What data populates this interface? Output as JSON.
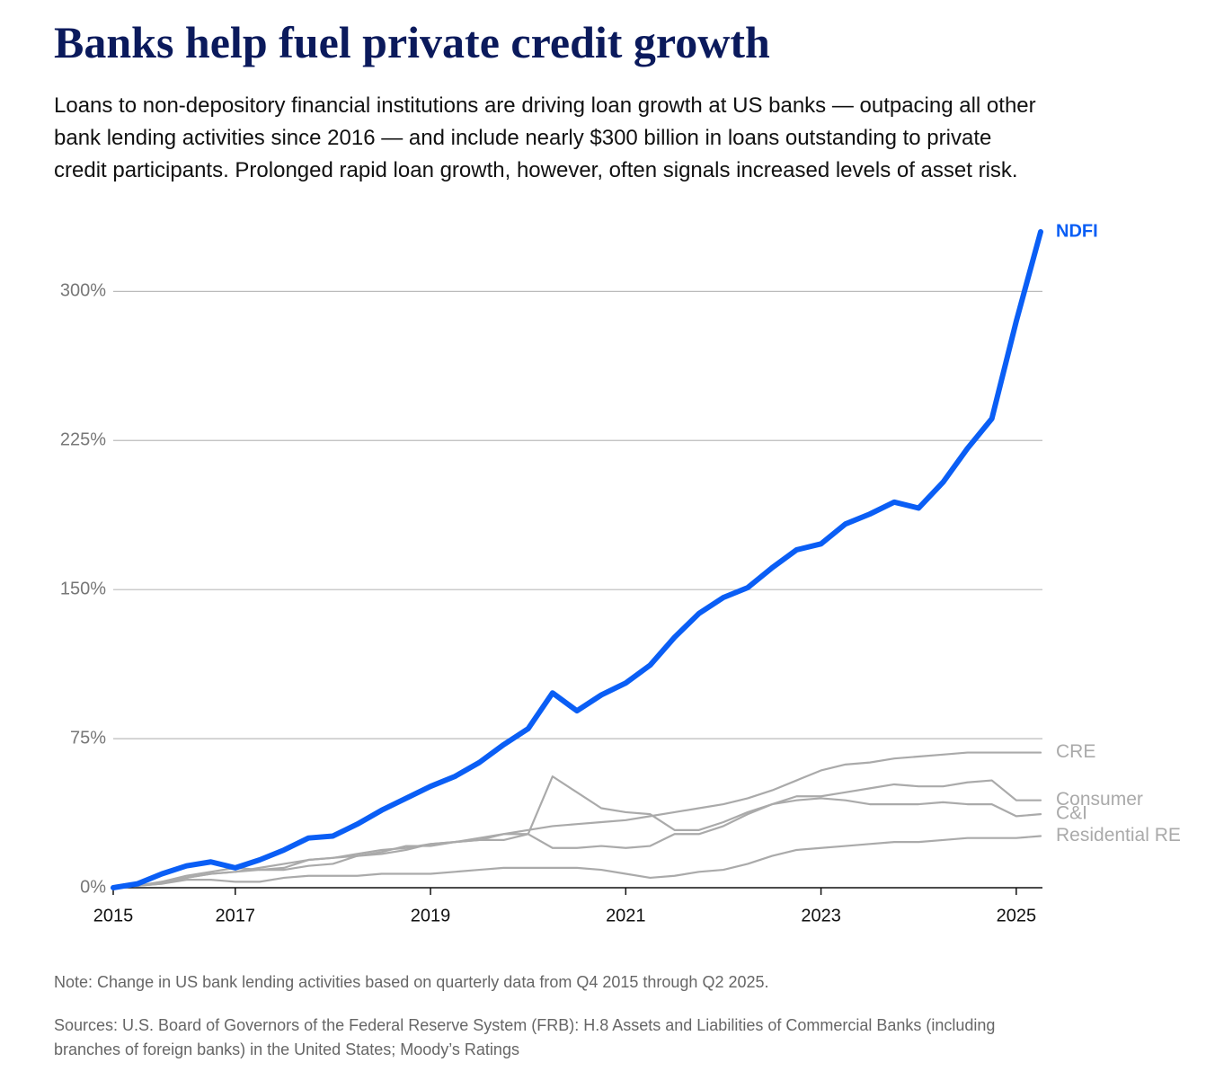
{
  "chart_data": {
    "type": "line",
    "title": "Banks help fuel private credit growth",
    "subtitle": "Loans to non-depository financial institutions are driving loan growth at US banks — outpacing all other bank lending activities since 2016 — and include nearly $300 billion in loans outstanding to private credit participants. Prolonged rapid loan growth, however, often signals increased levels of asset risk.",
    "note": "Note: Change in US bank lending activities based on quarterly data from Q4 2015 through Q2 2025.",
    "sources": "Sources: U.S. Board of Governors of the Federal Reserve System (FRB): H.8 Assets and Liabilities of Commercial Banks (including branches of foreign banks) in the United States; Moody’s Ratings",
    "x": [
      2015.75,
      2016,
      2016.25,
      2016.5,
      2016.75,
      2017,
      2017.25,
      2017.5,
      2017.75,
      2018,
      2018.25,
      2018.5,
      2018.75,
      2019,
      2019.25,
      2019.5,
      2019.75,
      2020,
      2020.25,
      2020.5,
      2020.75,
      2021,
      2021.25,
      2021.5,
      2021.75,
      2022,
      2022.25,
      2022.5,
      2022.75,
      2023,
      2023.25,
      2023.5,
      2023.75,
      2024,
      2024.25,
      2024.5,
      2024.75,
      2025,
      2025.25
    ],
    "xlim": [
      2015.75,
      2025.25
    ],
    "xticks": [
      {
        "value": 2015.75,
        "label": "2015"
      },
      2017,
      2019,
      2021,
      2023,
      2025
    ],
    "ylim": [
      0,
      330
    ],
    "yticks": [
      {
        "value": 0,
        "label": "0%"
      },
      {
        "value": 75,
        "label": "75%"
      },
      {
        "value": 150,
        "label": "150%"
      },
      {
        "value": 225,
        "label": "225%"
      },
      {
        "value": 300,
        "label": "300%"
      }
    ],
    "grid": true,
    "series": [
      {
        "name": "NDFI",
        "color": "#0a5ef5",
        "values": [
          0,
          2,
          7,
          11,
          13,
          10,
          14,
          19,
          25,
          26,
          32,
          39,
          45,
          51,
          56,
          63,
          72,
          80,
          98,
          89,
          97,
          103,
          112,
          126,
          138,
          146,
          151,
          161,
          170,
          173,
          183,
          188,
          194,
          191,
          204,
          221,
          236,
          285,
          330
        ]
      },
      {
        "name": "CRE",
        "color": "#aaaaaa",
        "values": [
          0,
          1,
          3,
          5,
          7,
          8,
          10,
          12,
          14,
          15,
          17,
          19,
          20,
          22,
          23,
          25,
          27,
          29,
          31,
          32,
          33,
          34,
          36,
          38,
          40,
          42,
          45,
          49,
          54,
          59,
          62,
          63,
          65,
          66,
          67,
          68,
          68,
          68,
          68
        ]
      },
      {
        "name": "Consumer",
        "color": "#aaaaaa",
        "values": [
          0,
          1,
          2,
          5,
          7,
          8,
          9,
          9,
          11,
          12,
          16,
          17,
          19,
          22,
          23,
          24,
          24,
          27,
          20,
          20,
          21,
          20,
          21,
          27,
          27,
          31,
          37,
          42,
          46,
          46,
          48,
          50,
          52,
          51,
          51,
          53,
          54,
          44,
          44
        ]
      },
      {
        "name": "C&I",
        "color": "#aaaaaa",
        "values": [
          0,
          1,
          3,
          6,
          8,
          10,
          9,
          10,
          14,
          15,
          16,
          18,
          21,
          21,
          23,
          24,
          27,
          27,
          56,
          48,
          40,
          38,
          37,
          29,
          29,
          33,
          38,
          42,
          44,
          45,
          44,
          42,
          42,
          42,
          43,
          42,
          42,
          36,
          37
        ]
      },
      {
        "name": "Residential RE",
        "color": "#aaaaaa",
        "values": [
          0,
          1,
          2,
          4,
          4,
          3,
          3,
          5,
          6,
          6,
          6,
          7,
          7,
          7,
          8,
          9,
          10,
          10,
          10,
          10,
          9,
          7,
          5,
          6,
          8,
          9,
          12,
          16,
          19,
          20,
          21,
          22,
          23,
          23,
          24,
          25,
          25,
          25,
          26
        ]
      }
    ]
  }
}
